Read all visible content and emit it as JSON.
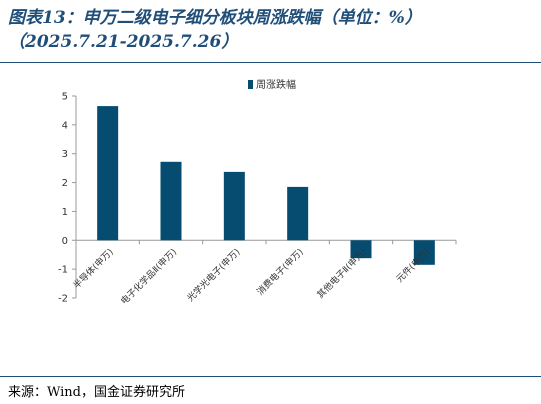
{
  "header": {
    "title_line1": "图表13：申万二级电子细分板块周涨跌幅（单位：%）",
    "title_line2": "（2025.7.21-2025.7.26）"
  },
  "footer": {
    "source": "来源：Wind，国金证券研究所"
  },
  "colors": {
    "bar": "#064c70",
    "rule": "#1f4e79",
    "axis": "#999999"
  },
  "chart_data": {
    "type": "bar",
    "title": "",
    "xlabel": "",
    "ylabel": "",
    "categories": [
      "半导体(申万)",
      "电子化学品Ⅱ(申万)",
      "光学光电子(申万)",
      "消费电子(申万)",
      "其他电子Ⅱ(申万)",
      "元件(申万)"
    ],
    "series": [
      {
        "name": "周涨跌幅",
        "values": [
          4.65,
          2.72,
          2.37,
          1.85,
          -0.62,
          -0.85
        ]
      }
    ],
    "ylim": [
      -2,
      5
    ],
    "yticks": [
      -2,
      -1,
      0,
      1,
      2,
      3,
      4,
      5
    ],
    "grid": false,
    "legend_position": "top-center"
  }
}
